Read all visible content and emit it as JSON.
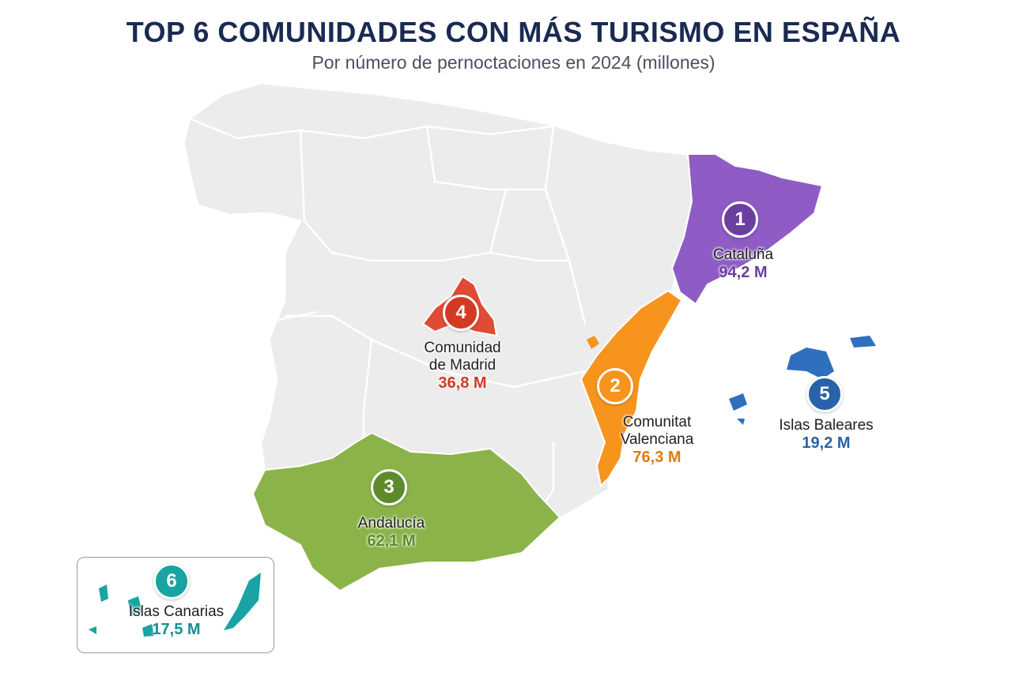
{
  "title": "TOP 6 COMUNIDADES CON MÁS TURISMO EN ESPAÑA",
  "subtitle": "Por número de pernoctaciones en 2024 (millones)",
  "regions": [
    {
      "rank": "1",
      "name": "Cataluña",
      "value": "94,2 M",
      "color": "#8e5cc4",
      "text_color": "#6b3fa0"
    },
    {
      "rank": "2",
      "name": "Comunitat Valenciana",
      "value": "76,3 M",
      "color": "#f7941d",
      "text_color": "#e07b12"
    },
    {
      "rank": "3",
      "name": "Andalucía",
      "value": "62,1 M",
      "color": "#8bb34a",
      "text_color": "#5e8a2a"
    },
    {
      "rank": "4",
      "name": "Comunidad de Madrid",
      "value": "36,8 M",
      "color": "#e04b36",
      "text_color": "#d23a24"
    },
    {
      "rank": "5",
      "name": "Islas Baleares",
      "value": "19,2 M",
      "color": "#2f6fbd",
      "text_color": "#2a62aa"
    },
    {
      "rank": "6",
      "name": "Islas Canarias",
      "value": "17,5 M",
      "color": "#1aa3a3",
      "text_color": "#168f8f"
    }
  ],
  "base_color": "#ececec"
}
